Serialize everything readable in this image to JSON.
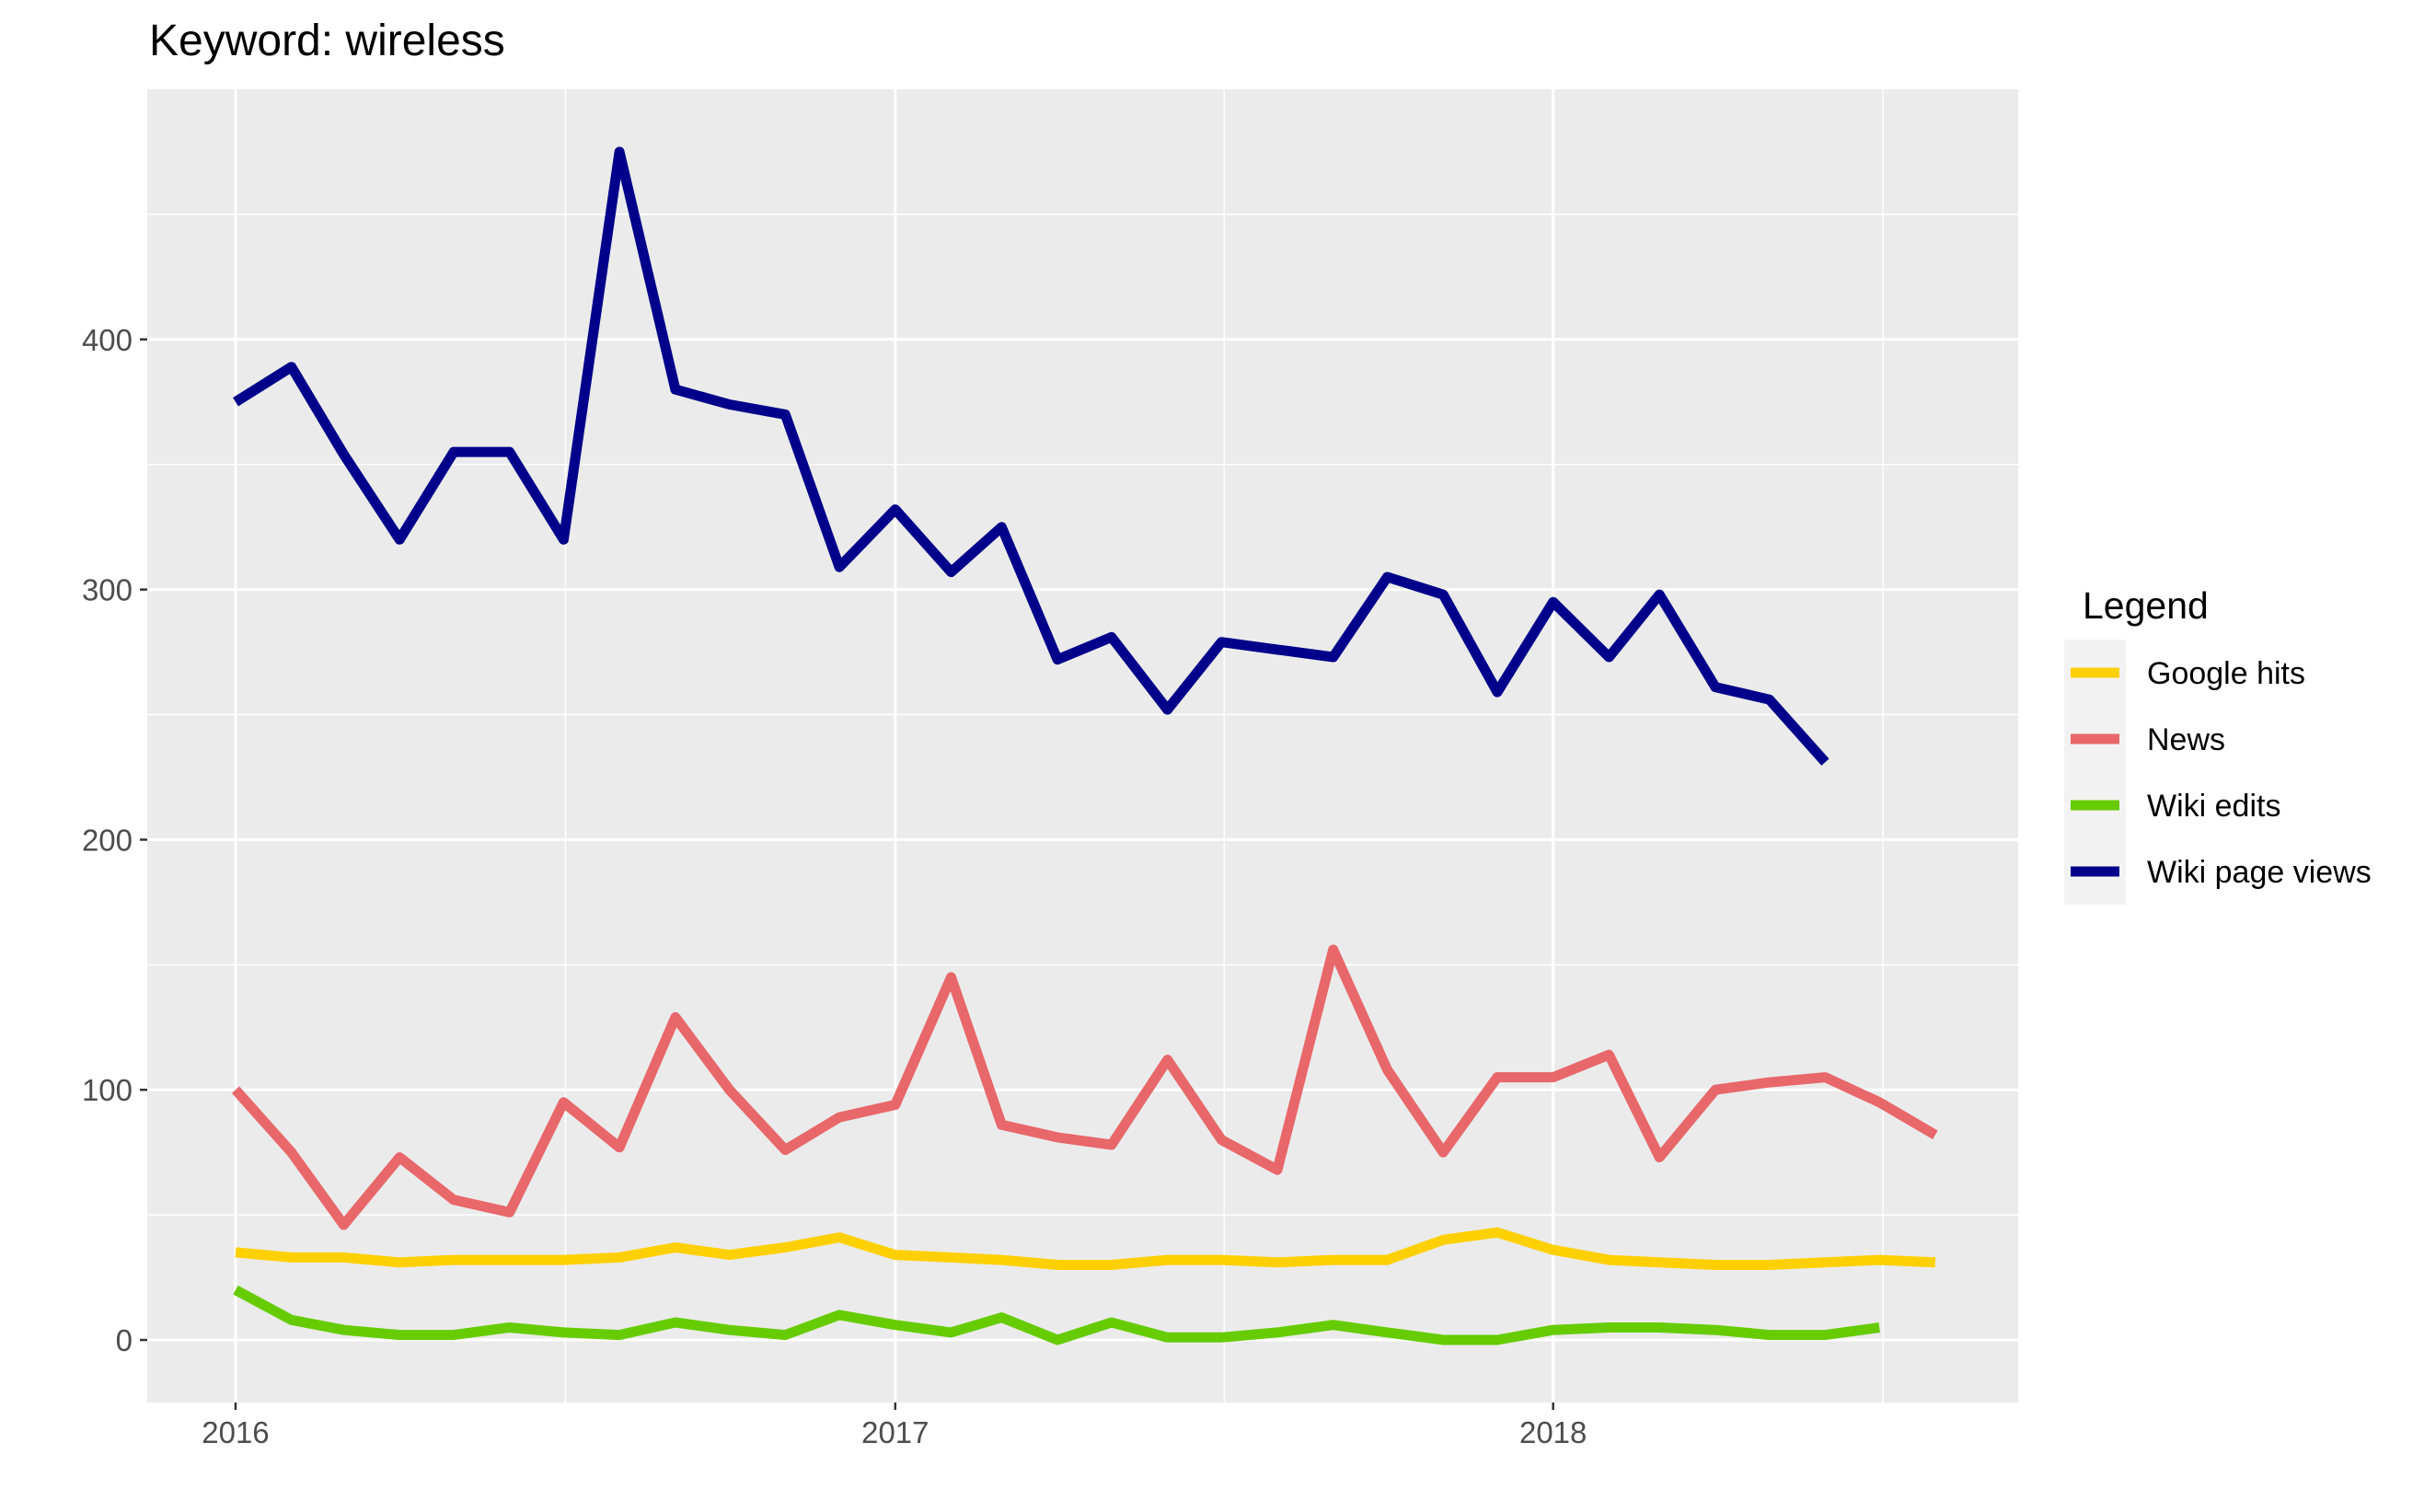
{
  "chart_data": {
    "type": "line",
    "title": "Keyword: wireless",
    "xlabel": "",
    "ylabel": "",
    "x_ticks": [
      "2016",
      "2017",
      "2018"
    ],
    "y_ticks": [
      "0",
      "100",
      "200",
      "300",
      "400"
    ],
    "ylim": [
      -25,
      500
    ],
    "xlim": [
      "2015-11-13",
      "2018-09-16"
    ],
    "grid": true,
    "legend": {
      "title": "Legend",
      "position": "right"
    },
    "x": [
      "2016-01-01",
      "2016-02-01",
      "2016-03-01",
      "2016-04-01",
      "2016-05-01",
      "2016-06-01",
      "2016-07-01",
      "2016-08-01",
      "2016-09-01",
      "2016-10-01",
      "2016-11-01",
      "2016-12-01",
      "2017-01-01",
      "2017-02-01",
      "2017-03-01",
      "2017-04-01",
      "2017-05-01",
      "2017-06-01",
      "2017-07-01",
      "2017-08-01",
      "2017-09-01",
      "2017-10-01",
      "2017-11-01",
      "2017-12-01",
      "2018-01-01",
      "2018-02-01",
      "2018-03-01",
      "2018-04-01",
      "2018-05-01",
      "2018-06-01",
      "2018-07-01",
      "2018-08-01"
    ],
    "series": [
      {
        "name": "Google hits",
        "color": "#FFD000",
        "values": [
          35,
          33,
          33,
          31,
          32,
          32,
          32,
          33,
          37,
          34,
          37,
          41,
          34,
          33,
          32,
          30,
          30,
          32,
          32,
          31,
          32,
          32,
          40,
          43,
          36,
          32,
          31,
          30,
          30,
          31,
          32,
          31
        ]
      },
      {
        "name": "News",
        "color": "#E8676A",
        "values": [
          100,
          75,
          46,
          73,
          56,
          51,
          95,
          77,
          129,
          100,
          76,
          89,
          94,
          145,
          86,
          81,
          78,
          112,
          80,
          68,
          156,
          108,
          75,
          105,
          105,
          114,
          73,
          100,
          103,
          105,
          95,
          82
        ]
      },
      {
        "name": "Wiki edits",
        "color": "#66CC00",
        "values": [
          20,
          8,
          4,
          2,
          2,
          5,
          3,
          2,
          7,
          4,
          2,
          10,
          6,
          3,
          9,
          0,
          7,
          1,
          1,
          3,
          6,
          3,
          0,
          0,
          4,
          5,
          5,
          4,
          2,
          2,
          5,
          null
        ]
      },
      {
        "name": "Wiki page views",
        "color": "#00008B",
        "values": [
          375,
          389,
          354,
          320,
          355,
          355,
          320,
          475,
          380,
          374,
          370,
          309,
          332,
          307,
          325,
          272,
          281,
          252,
          279,
          276,
          273,
          305,
          298,
          259,
          295,
          273,
          298,
          261,
          256,
          231,
          null,
          null
        ]
      }
    ]
  }
}
